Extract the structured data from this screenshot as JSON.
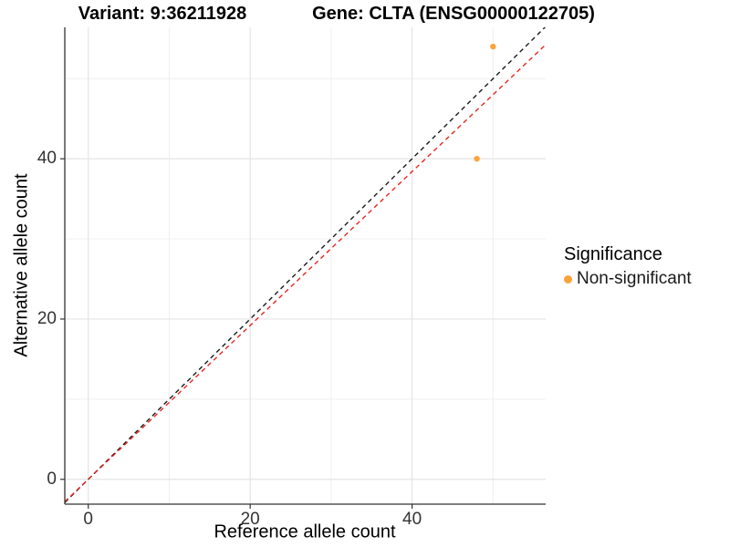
{
  "chart_data": {
    "type": "scatter",
    "title_left": "Variant: 9:36211928",
    "title_right": "Gene: CLTA (ENSG00000122705)",
    "xlabel": "Reference allele count",
    "ylabel": "Alternative allele count",
    "xlim": [
      -2.9,
      56.5
    ],
    "ylim": [
      -3.1,
      56.4
    ],
    "x_major_ticks": [
      0,
      20,
      40
    ],
    "y_major_ticks": [
      0,
      20,
      40
    ],
    "x_gridlines_major": [
      0,
      20,
      40
    ],
    "x_gridlines_minor": [
      10,
      30,
      50
    ],
    "y_gridlines_major": [
      0,
      20,
      40
    ],
    "y_gridlines_minor": [
      10,
      30,
      50
    ],
    "grid": "on",
    "points": [
      {
        "x": 50,
        "y": 54,
        "series": "Non-significant"
      },
      {
        "x": 48,
        "y": 40,
        "series": "Non-significant"
      }
    ],
    "point_color": "#FAA43A",
    "lines": [
      {
        "name": "identity",
        "slope": 1,
        "intercept": 0,
        "color": "#1a1a1a",
        "style": "dashed"
      },
      {
        "name": "expected-ratio",
        "slope": 0.96,
        "intercept": 0,
        "color": "#E8261F",
        "style": "dashed"
      }
    ],
    "legend": {
      "title": "Significance",
      "position": "right",
      "items": [
        {
          "label": "Non-significant",
          "color": "#FAA43A"
        }
      ]
    },
    "colors": {
      "grid_major": "#e4e4e4",
      "grid_minor": "#efefef",
      "axis_line": "#333333",
      "tick": "#333333",
      "tick_label": "#333333"
    }
  }
}
